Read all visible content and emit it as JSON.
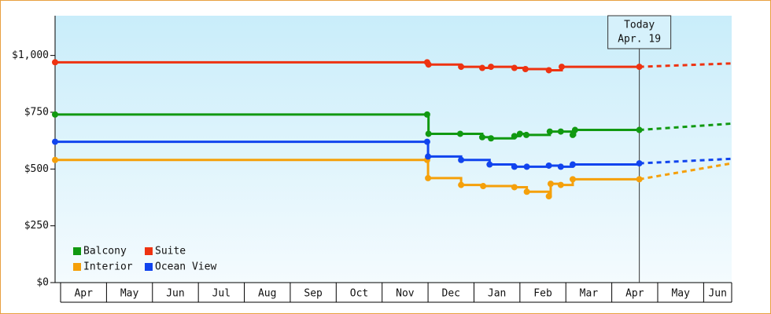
{
  "chart_data": {
    "type": "step-line",
    "xlim": [
      -0.12,
      14.61
    ],
    "xticks": [
      {
        "value": 0,
        "label": "Apr"
      },
      {
        "value": 1,
        "label": "May"
      },
      {
        "value": 2,
        "label": "Jun"
      },
      {
        "value": 3,
        "label": "Jul"
      },
      {
        "value": 4,
        "label": "Aug"
      },
      {
        "value": 5,
        "label": "Sep"
      },
      {
        "value": 6,
        "label": "Oct"
      },
      {
        "value": 7,
        "label": "Nov"
      },
      {
        "value": 8,
        "label": "Dec"
      },
      {
        "value": 9,
        "label": "Jan"
      },
      {
        "value": 10,
        "label": "Feb"
      },
      {
        "value": 11,
        "label": "Mar"
      },
      {
        "value": 12,
        "label": "Apr"
      },
      {
        "value": 13,
        "label": "May"
      },
      {
        "value": 14,
        "label": "Jun"
      }
    ],
    "ylim": [
      0,
      1175
    ],
    "yticks": [
      {
        "value": 0,
        "label": "$0"
      },
      {
        "value": 250,
        "label": "$250"
      },
      {
        "value": 500,
        "label": "$500"
      },
      {
        "value": 750,
        "label": "$750"
      },
      {
        "value": 1000,
        "label": "$1,000"
      }
    ],
    "today": {
      "label": "Today",
      "date": "Apr. 19",
      "x": 12.6
    },
    "legend": "bottom-left",
    "series": [
      {
        "name": "Balcony",
        "color": "#119911",
        "x": [
          -0.12,
          7.98,
          8.01,
          8.7,
          9.18,
          9.37,
          9.88,
          10.0,
          10.14,
          10.65,
          10.89,
          11.15,
          11.2,
          12.6
        ],
        "values": [
          740,
          740,
          655,
          655,
          640,
          635,
          645,
          655,
          650,
          665,
          665,
          650,
          672,
          672
        ],
        "forecast": {
          "x": 14.61,
          "value": 700
        }
      },
      {
        "name": "Suite",
        "color": "#ee3311",
        "x": [
          -0.12,
          7.98,
          8.01,
          8.72,
          9.18,
          9.37,
          9.88,
          10.12,
          10.63,
          10.91,
          12.6
        ],
        "values": [
          970,
          970,
          960,
          950,
          945,
          950,
          945,
          940,
          935,
          950,
          950
        ],
        "forecast": {
          "x": 14.61,
          "value": 965
        }
      },
      {
        "name": "Interior",
        "color": "#f5a00a",
        "x": [
          -0.12,
          7.98,
          8.0,
          8.72,
          9.2,
          9.88,
          10.15,
          10.63,
          10.67,
          10.89,
          11.15,
          12.6
        ],
        "values": [
          540,
          540,
          460,
          430,
          425,
          420,
          400,
          380,
          435,
          430,
          455,
          455
        ],
        "forecast": {
          "x": 14.61,
          "value": 525
        }
      },
      {
        "name": "Ocean View",
        "color": "#1144ee",
        "x": [
          -0.12,
          7.98,
          8.0,
          8.72,
          9.34,
          9.88,
          10.15,
          10.63,
          10.89,
          11.15,
          12.6
        ],
        "values": [
          620,
          620,
          555,
          540,
          520,
          510,
          510,
          515,
          510,
          520,
          525
        ],
        "forecast": {
          "x": 14.61,
          "value": 545
        }
      }
    ]
  }
}
